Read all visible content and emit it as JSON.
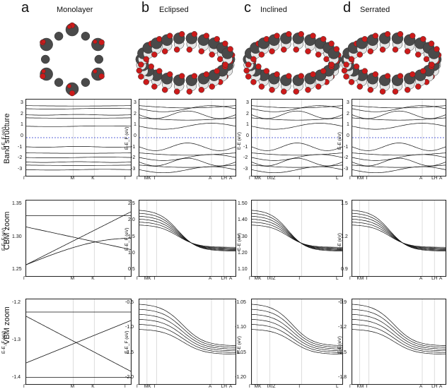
{
  "columns": [
    {
      "letter": "a",
      "title": "Monolayer"
    },
    {
      "letter": "b",
      "title": "Eclipsed"
    },
    {
      "letter": "c",
      "title": "Inclined"
    },
    {
      "letter": "d",
      "title": "Serrated"
    }
  ],
  "rows": [
    {
      "label": "Band structure"
    },
    {
      "label": "CBM zoom"
    },
    {
      "label": "VBM zoom"
    }
  ],
  "axes": {
    "band_a": {
      "ylabel": "E-E_F (eV)",
      "ticks": [
        "3",
        "2",
        "1",
        "0",
        "-1",
        "-2",
        "-3"
      ],
      "kpoints": [
        "Γ",
        "M",
        "K",
        "Γ"
      ]
    },
    "band_b": {
      "ylabel": "E-E_F (eV)",
      "ticks": [
        "3",
        "2",
        "1",
        "0",
        "-1",
        "-2",
        "-3"
      ],
      "kpoints": [
        "Γ",
        "MK",
        "Γ",
        "A",
        "LH",
        "A"
      ]
    },
    "band_c": {
      "ylabel": "E-E (eV)",
      "ticks": [
        "3",
        "2",
        "1",
        "0",
        "-1",
        "-2",
        "-3"
      ],
      "kpoints": [
        "Γ",
        "MK",
        "IXIZ",
        "Γ",
        "L"
      ]
    },
    "band_d": {
      "ylabel": "E-E (eV)",
      "ticks": [
        "3",
        "2",
        "1",
        "0",
        "-1",
        "-2",
        "-3"
      ],
      "kpoints": [
        "Γ",
        "KM",
        "Γ",
        "A",
        "LH",
        "A"
      ]
    },
    "cbm_a": {
      "ylabel": "E-E_F (eV)",
      "ticks": [
        "1.35",
        "1.30",
        "1.25"
      ],
      "kpoints": [
        "Γ",
        "M",
        "K",
        "Γ"
      ]
    },
    "cbm_b": {
      "ylabel": "E-E_F (eV)",
      "ticks": [
        "2.5",
        "2.0",
        "1.5",
        "1.0",
        "0.5"
      ],
      "kpoints": [
        "Γ",
        "MK",
        "Γ",
        "A",
        "LH",
        "A"
      ]
    },
    "cbm_c": {
      "ylabel": "E-E (eV)",
      "ticks": [
        "1.50",
        "1.40",
        "1.30",
        "1.20",
        "1.10"
      ],
      "kpoints": [
        "Γ",
        "MK",
        "IXIZ",
        "Γ",
        "L"
      ]
    },
    "cbm_d": {
      "ylabel": "E-E (eV)",
      "ticks": [
        "1.5",
        "1.2",
        "0.9"
      ],
      "kpoints": [
        "Γ",
        "KM",
        "Γ",
        "A",
        "LH",
        "A"
      ]
    },
    "vbm_a": {
      "ylabel": "E-E_F (eV)",
      "ticks": [
        "-1.2",
        "-1.3",
        "-1.4"
      ],
      "kpoints": [
        "Γ",
        "M",
        "K",
        "Γ"
      ]
    },
    "vbm_b": {
      "ylabel": "E-E_F (eV)",
      "ticks": [
        "-0.5",
        "-1.0",
        "-1.5",
        "-2.0"
      ],
      "kpoints": [
        "Γ",
        "MK",
        "Γ",
        "A",
        "LH",
        "A"
      ]
    },
    "vbm_c": {
      "ylabel": "E-E (eV)",
      "ticks": [
        "-1.05",
        "-1.10",
        "-1.15",
        "-1.20"
      ],
      "kpoints": [
        "Γ",
        "MK",
        "IXIZ",
        "Γ",
        "L"
      ]
    },
    "vbm_d": {
      "ylabel": "E-E (eV)",
      "ticks": [
        "-0.9",
        "-1.2",
        "-1.5",
        "-1.8"
      ],
      "kpoints": [
        "Γ",
        "KM",
        "Γ",
        "A",
        "LH",
        "A"
      ]
    }
  },
  "colors": {
    "oxygen": "#cc1a1a",
    "carbon": "#4a4a4a",
    "hydrogen": "#e6e6e6",
    "fermi_line": "#2233cc",
    "band": "#111111"
  }
}
